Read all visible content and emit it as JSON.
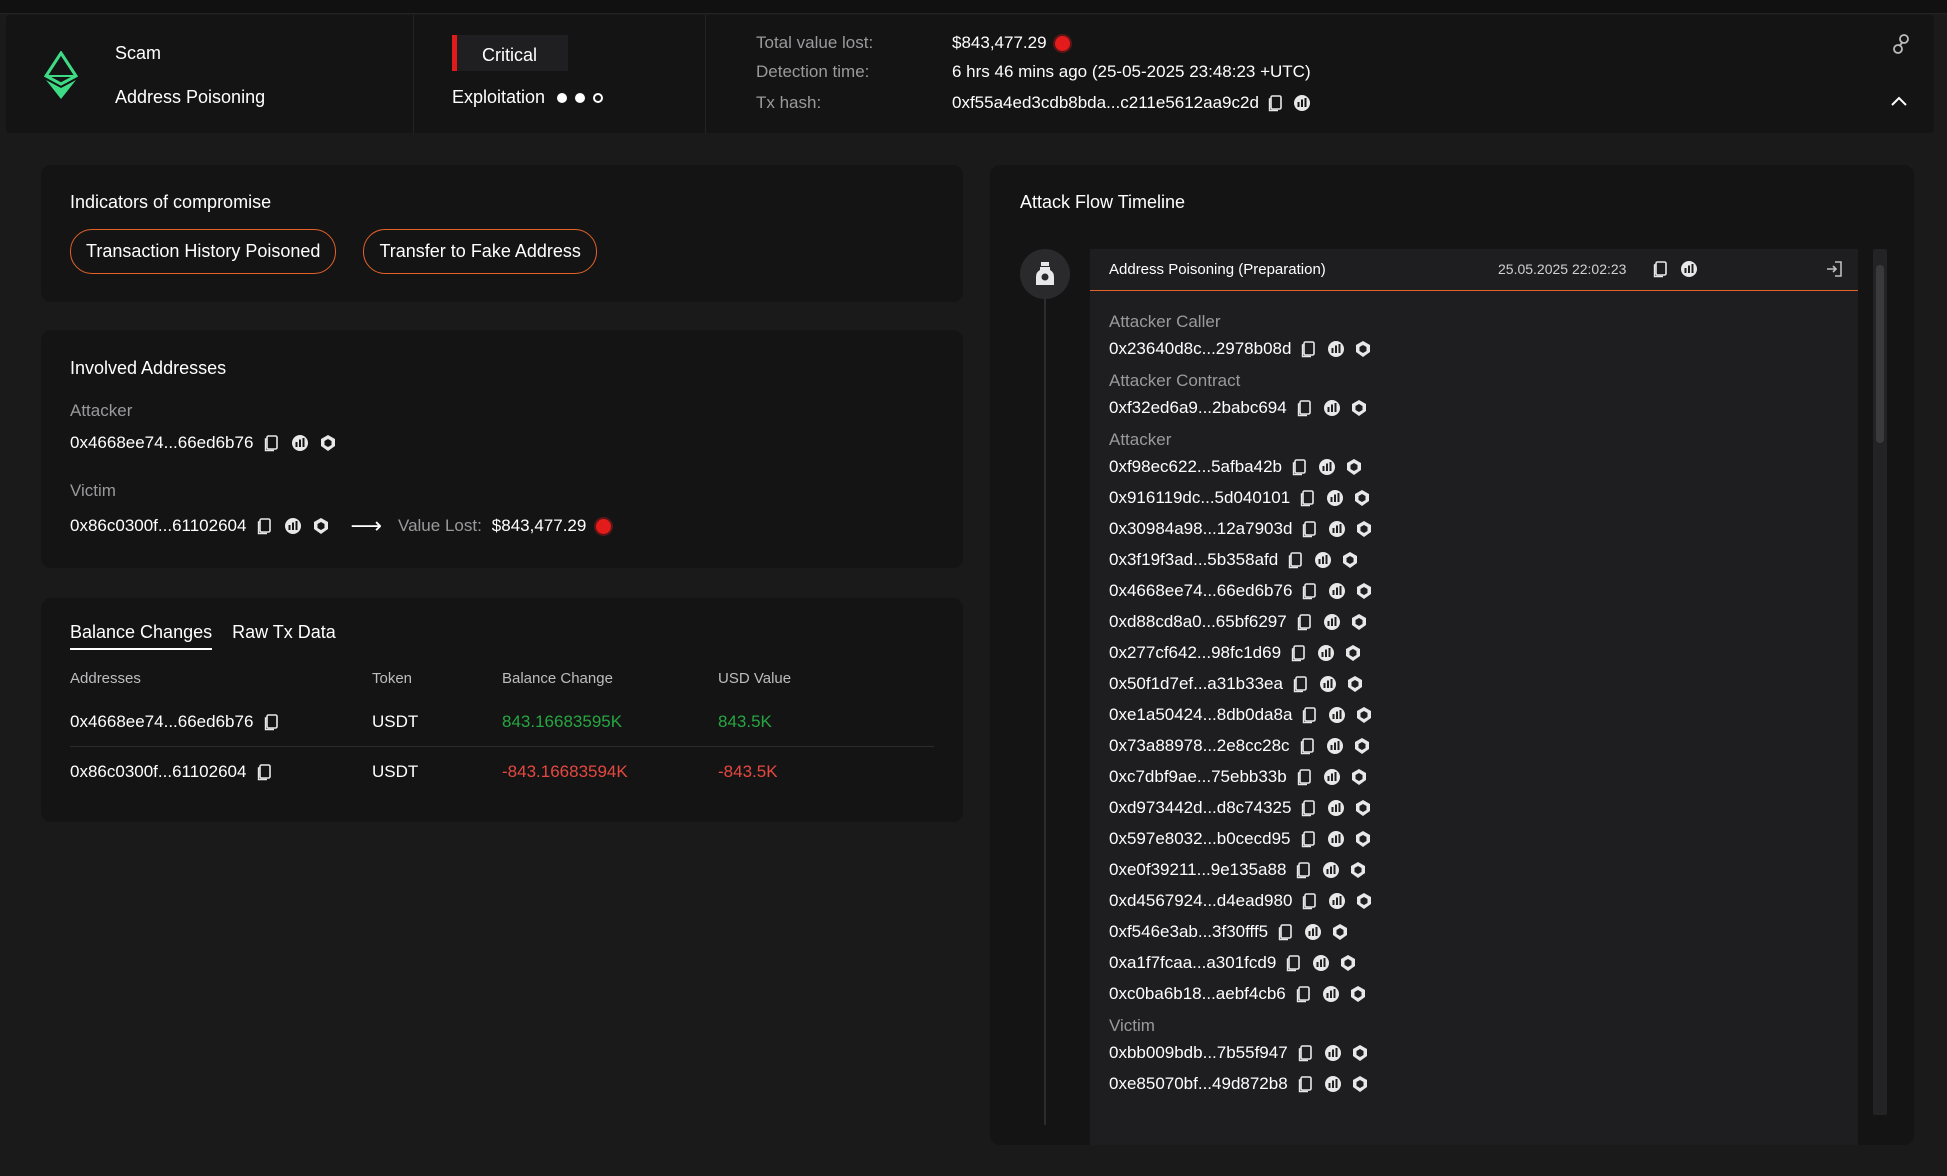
{
  "header": {
    "type": "Scam",
    "subtype": "Address Poisoning",
    "severity": "Critical",
    "stage": "Exploitation",
    "total_value_lost_label": "Total value lost:",
    "total_value_lost": "$843,477.29",
    "detection_time_label": "Detection time:",
    "detection_time": "6 hrs 46 mins ago (25-05-2025 23:48:23 +UTC)",
    "tx_hash_label": "Tx hash:",
    "tx_hash": "0xf55a4ed3cdb8bda...c211e5612aa9c2d"
  },
  "indicators": {
    "title": "Indicators of compromise",
    "items": [
      "Transaction History Poisoned",
      "Transfer to Fake Address"
    ]
  },
  "involved": {
    "title": "Involved Addresses",
    "attacker_label": "Attacker",
    "attacker": "0x4668ee74...66ed6b76",
    "victim_label": "Victim",
    "victim": "0x86c0300f...61102604",
    "value_lost_label": "Value Lost:",
    "value_lost": "$843,477.29"
  },
  "balance": {
    "tabs": [
      "Balance Changes",
      "Raw Tx Data"
    ],
    "columns": [
      "Addresses",
      "Token",
      "Balance Change",
      "USD Value"
    ],
    "rows": [
      {
        "address": "0x4668ee74...66ed6b76",
        "token": "USDT",
        "change": "843.16683595K",
        "usd": "843.5K"
      },
      {
        "address": "0x86c0300f...61102604",
        "token": "USDT",
        "change": "-843.16683594K",
        "usd": "-843.5K"
      }
    ]
  },
  "flow": {
    "title": "Attack Flow Timeline",
    "card_title": "Address Poisoning  (Preparation)",
    "card_date": "25.05.2025 22:02:23",
    "attacker_caller_label": "Attacker Caller",
    "attacker_caller": "0x23640d8c...2978b08d",
    "attacker_contract_label": "Attacker Contract",
    "attacker_contract": "0xf32ed6a9...2babc694",
    "attacker_label": "Attacker",
    "attackers": [
      "0xf98ec622...5afba42b",
      "0x916119dc...5d040101",
      "0x30984a98...12a7903d",
      "0x3f19f3ad...5b358afd",
      "0x4668ee74...66ed6b76",
      "0xd88cd8a0...65bf6297",
      "0x277cf642...98fc1d69",
      "0x50f1d7ef...a31b33ea",
      "0xe1a50424...8db0da8a",
      "0x73a88978...2e8cc28c",
      "0xc7dbf9ae...75ebb33b",
      "0xd973442d...d8c74325",
      "0x597e8032...b0cecd95",
      "0xe0f39211...9e135a88",
      "0xd4567924...d4ead980",
      "0xf546e3ab...3f30fff5",
      "0xa1f7fcaa...a301fcd9",
      "0xc0ba6b18...aebf4cb6"
    ],
    "victim_label": "Victim",
    "victims": [
      "0xbb009bdb...7b55f947",
      "0xe85070bf...49d872b8"
    ]
  }
}
